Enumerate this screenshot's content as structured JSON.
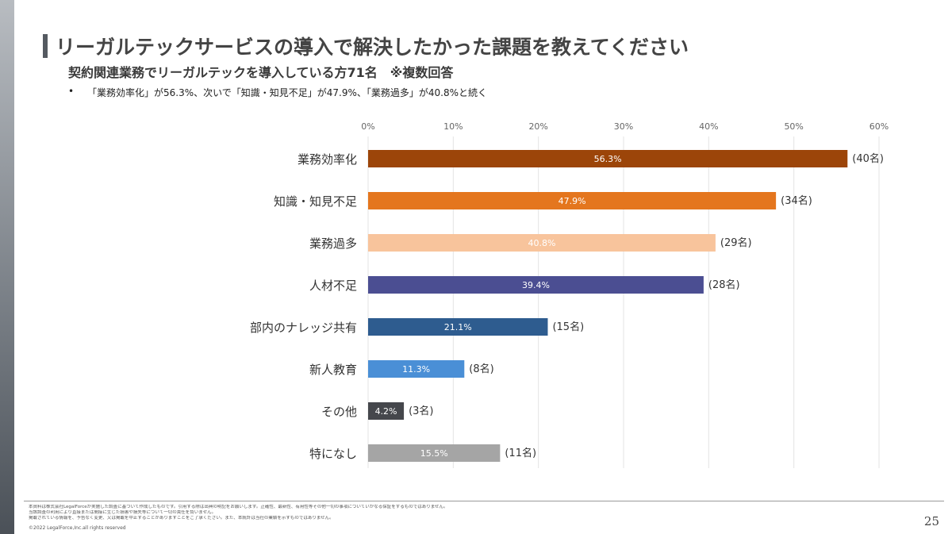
{
  "slide": {
    "title": "リーガルテックサービスの導入で解決したかった課題を教えてください",
    "subtitle": "契約関連業務でリーガルテックを導入している方71名　※複数回答",
    "summary_bullet": "•",
    "summary": "「業務効率化」が56.3%、次いで「知識・知見不足」が47.9%、「業務過多」が40.8%と続く",
    "disclaimer_lines": [
      "本資料は株式会社LegalForceが実施した調査に基づいて作成したものです。引用する際は出典の明記をお願いします。正確性、最新性、有用性等その他一切の事項についていかなる保証をするものではありません。",
      "当該調査の利用により直接または間接に生じた損害や損失等について一切の責任を負いません。",
      "掲載されている情報を、予告なく変更、又は掲載を中止することがありますことをご了承ください。また、本統計は当社の業績を示すものではありません。"
    ],
    "copyright": "©2022 LegalForce,Inc.all rights reserved",
    "page_number": "25"
  },
  "chart_data": {
    "type": "bar",
    "orientation": "horizontal",
    "xlim": [
      0,
      60
    ],
    "ticks": [
      0,
      10,
      20,
      30,
      40,
      50,
      60
    ],
    "tick_labels": [
      "0%",
      "10%",
      "20%",
      "30%",
      "40%",
      "50%",
      "60%"
    ],
    "grid": true,
    "categories": [
      "業務効率化",
      "知識・知見不足",
      "業務過多",
      "人材不足",
      "部内のナレッジ共有",
      "新人教育",
      "その他",
      "特になし"
    ],
    "values": [
      56.3,
      47.9,
      40.8,
      39.4,
      21.1,
      11.3,
      4.2,
      15.5
    ],
    "value_labels": [
      "56.3%",
      "47.9%",
      "40.8%",
      "39.4%",
      "21.1%",
      "11.3%",
      "4.2%",
      "15.5%"
    ],
    "counts": [
      "(40名)",
      "(34名)",
      "(29名)",
      "(28名)",
      "(15名)",
      "(8名)",
      "(3名)",
      "(11名)"
    ],
    "colors": [
      "#9c4509",
      "#e4761e",
      "#f8c49c",
      "#4b4e92",
      "#2e5c8f",
      "#4a8fd6",
      "#45474c",
      "#a5a5a5"
    ]
  }
}
